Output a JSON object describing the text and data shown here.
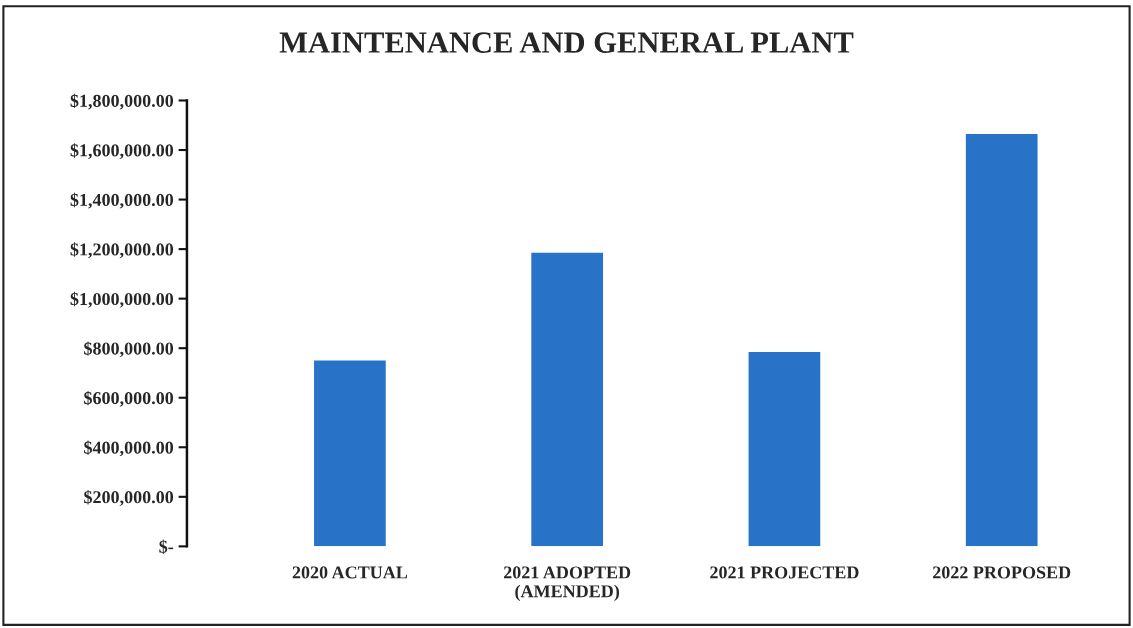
{
  "chart_data": {
    "type": "bar",
    "title": "MAINTENANCE AND GENERAL PLANT",
    "categories": [
      "2020 ACTUAL",
      "2021 ADOPTED\n(AMENDED)",
      "2021 PROJECTED",
      "2022 PROPOSED"
    ],
    "values": [
      750000,
      1185000,
      785000,
      1665000
    ],
    "color": "#2872c8",
    "ylim": [
      0,
      1800000
    ],
    "yticks": [
      {
        "value": 0,
        "label": "$-"
      },
      {
        "value": 200000,
        "label": "$200,000.00"
      },
      {
        "value": 400000,
        "label": "$400,000.00"
      },
      {
        "value": 600000,
        "label": "$600,000.00"
      },
      {
        "value": 800000,
        "label": "$800,000.00"
      },
      {
        "value": 1000000,
        "label": "$1,000,000.00"
      },
      {
        "value": 1200000,
        "label": "$1,200,000.00"
      },
      {
        "value": 1400000,
        "label": "$1,400,000.00"
      },
      {
        "value": 1600000,
        "label": "$1,600,000.00"
      },
      {
        "value": 1800000,
        "label": "$1,800,000.00"
      }
    ],
    "grid": false
  }
}
